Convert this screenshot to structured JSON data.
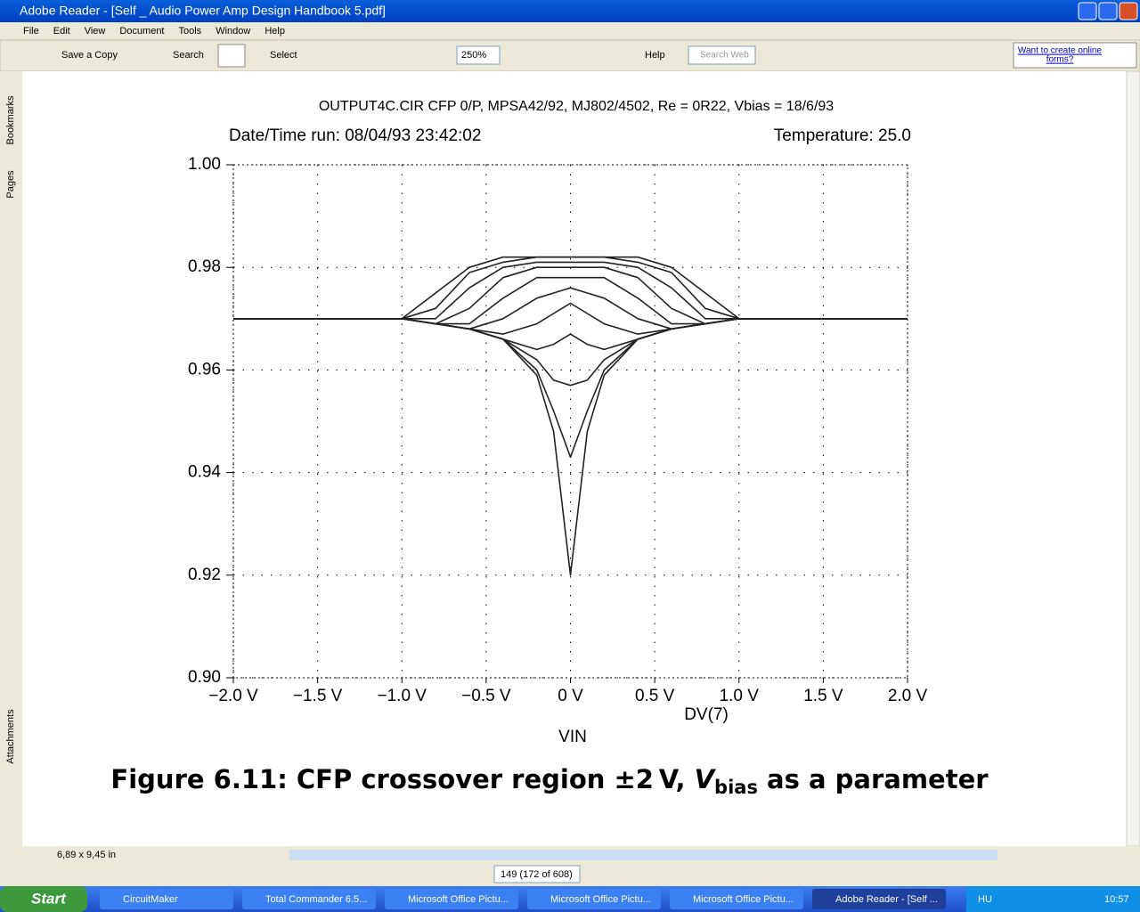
{
  "window": {
    "title": "Adobe Reader - [Self _ Audio Power Amp Design Handbook 5.pdf]"
  },
  "menu": [
    "File",
    "Edit",
    "View",
    "Document",
    "Tools",
    "Window",
    "Help"
  ],
  "toolbar": {
    "save": "Save a Copy",
    "search": "Search",
    "select": "Select",
    "zoom": "250%",
    "help": "Help",
    "search_web": "Search Web",
    "promo": [
      "Want to create online",
      "forms?"
    ]
  },
  "side_tabs": [
    "Bookmarks",
    "Pages",
    "Attachments"
  ],
  "chart_data": {
    "type": "line",
    "title": "OUTPUT4C.CIR CFP 0/P, MPSA42/92, MJ802/4502, Re = 0R22, Vbias = 18/6/93",
    "subtitle_left": "Date/Time run: 08/04/93 23:42:02",
    "subtitle_right": "Temperature: 25.0",
    "annotation": "DV(7)",
    "xlabel": "VIN",
    "caption": {
      "main": "Figure 6.11:  CFP crossover region ±2 V, ",
      "var": "V",
      "sub": "bias",
      "rest": " as a parameter"
    },
    "x": [
      -2,
      -1,
      -0.8,
      -0.6,
      -0.4,
      -0.2,
      -0.1,
      0,
      0.1,
      0.2,
      0.4,
      0.6,
      0.8,
      1,
      2
    ],
    "series": [
      {
        "color": "#222",
        "values": [
          0.97,
          0.97,
          0.975,
          0.98,
          0.982,
          0.982,
          0.982,
          0.982,
          0.982,
          0.982,
          0.982,
          0.98,
          0.975,
          0.97,
          0.97
        ]
      },
      {
        "color": "#222",
        "values": [
          0.97,
          0.97,
          0.972,
          0.979,
          0.981,
          0.982,
          0.982,
          0.982,
          0.982,
          0.982,
          0.981,
          0.979,
          0.972,
          0.97,
          0.97
        ]
      },
      {
        "color": "#222",
        "values": [
          0.97,
          0.97,
          0.97,
          0.976,
          0.98,
          0.981,
          0.981,
          0.981,
          0.981,
          0.981,
          0.98,
          0.976,
          0.97,
          0.97,
          0.97
        ]
      },
      {
        "color": "#222",
        "values": [
          0.97,
          0.97,
          0.969,
          0.972,
          0.978,
          0.98,
          0.98,
          0.98,
          0.98,
          0.98,
          0.978,
          0.972,
          0.969,
          0.97,
          0.97
        ]
      },
      {
        "color": "#222",
        "values": [
          0.97,
          0.97,
          0.969,
          0.969,
          0.974,
          0.978,
          0.978,
          0.978,
          0.978,
          0.978,
          0.974,
          0.969,
          0.969,
          0.97,
          0.97
        ]
      },
      {
        "color": "#222",
        "values": [
          0.97,
          0.97,
          0.969,
          0.968,
          0.97,
          0.974,
          0.975,
          0.976,
          0.975,
          0.974,
          0.97,
          0.968,
          0.969,
          0.97,
          0.97
        ]
      },
      {
        "color": "#222",
        "values": [
          0.97,
          0.97,
          0.969,
          0.968,
          0.967,
          0.969,
          0.971,
          0.973,
          0.971,
          0.969,
          0.967,
          0.968,
          0.969,
          0.97,
          0.97
        ]
      },
      {
        "color": "#222",
        "values": [
          0.97,
          0.97,
          0.969,
          0.968,
          0.966,
          0.964,
          0.965,
          0.967,
          0.965,
          0.964,
          0.966,
          0.968,
          0.969,
          0.97,
          0.97
        ]
      },
      {
        "color": "#222",
        "values": [
          0.97,
          0.97,
          0.969,
          0.968,
          0.966,
          0.962,
          0.958,
          0.957,
          0.958,
          0.962,
          0.966,
          0.968,
          0.969,
          0.97,
          0.97
        ]
      },
      {
        "color": "#222",
        "values": [
          0.97,
          0.97,
          0.969,
          0.968,
          0.966,
          0.96,
          0.952,
          0.943,
          0.952,
          0.96,
          0.966,
          0.968,
          0.969,
          0.97,
          0.97
        ]
      },
      {
        "color": "#222",
        "values": [
          0.97,
          0.97,
          0.969,
          0.968,
          0.966,
          0.959,
          0.948,
          0.92,
          0.948,
          0.959,
          0.966,
          0.968,
          0.969,
          0.97,
          0.97
        ]
      }
    ],
    "xlim": [
      -2,
      2
    ],
    "ylim": [
      0.9,
      1.0
    ],
    "xticks": [
      {
        "value": -2,
        "label": "−2.0 V"
      },
      {
        "value": -1.5,
        "label": "−1.5 V"
      },
      {
        "value": -1,
        "label": "−1.0 V"
      },
      {
        "value": -0.5,
        "label": "−0.5 V"
      },
      {
        "value": 0,
        "label": "0 V"
      },
      {
        "value": 0.5,
        "label": "0.5 V"
      },
      {
        "value": 1,
        "label": "1.0 V"
      },
      {
        "value": 1.5,
        "label": "1.5 V"
      },
      {
        "value": 2,
        "label": "2.0 V"
      }
    ],
    "yticks": [
      {
        "value": 0.9,
        "label": "0.90"
      },
      0.92,
      0.94,
      0.96,
      0.98,
      {
        "value": 1.0,
        "label": "1.00"
      }
    ],
    "grid": true
  },
  "status": {
    "size": "6,89 x 9,45 in",
    "page": "149 (172 of 608)"
  },
  "taskbar": {
    "start": "Start",
    "items": [
      "CircuitMaker",
      "Total Commander 6.5...",
      "Microsoft Office Pictu...",
      "Microsoft Office Pictu...",
      "Microsoft Office Pictu...",
      "Adobe Reader - [Self ..."
    ],
    "lang": "HU",
    "clock": "10:57"
  }
}
